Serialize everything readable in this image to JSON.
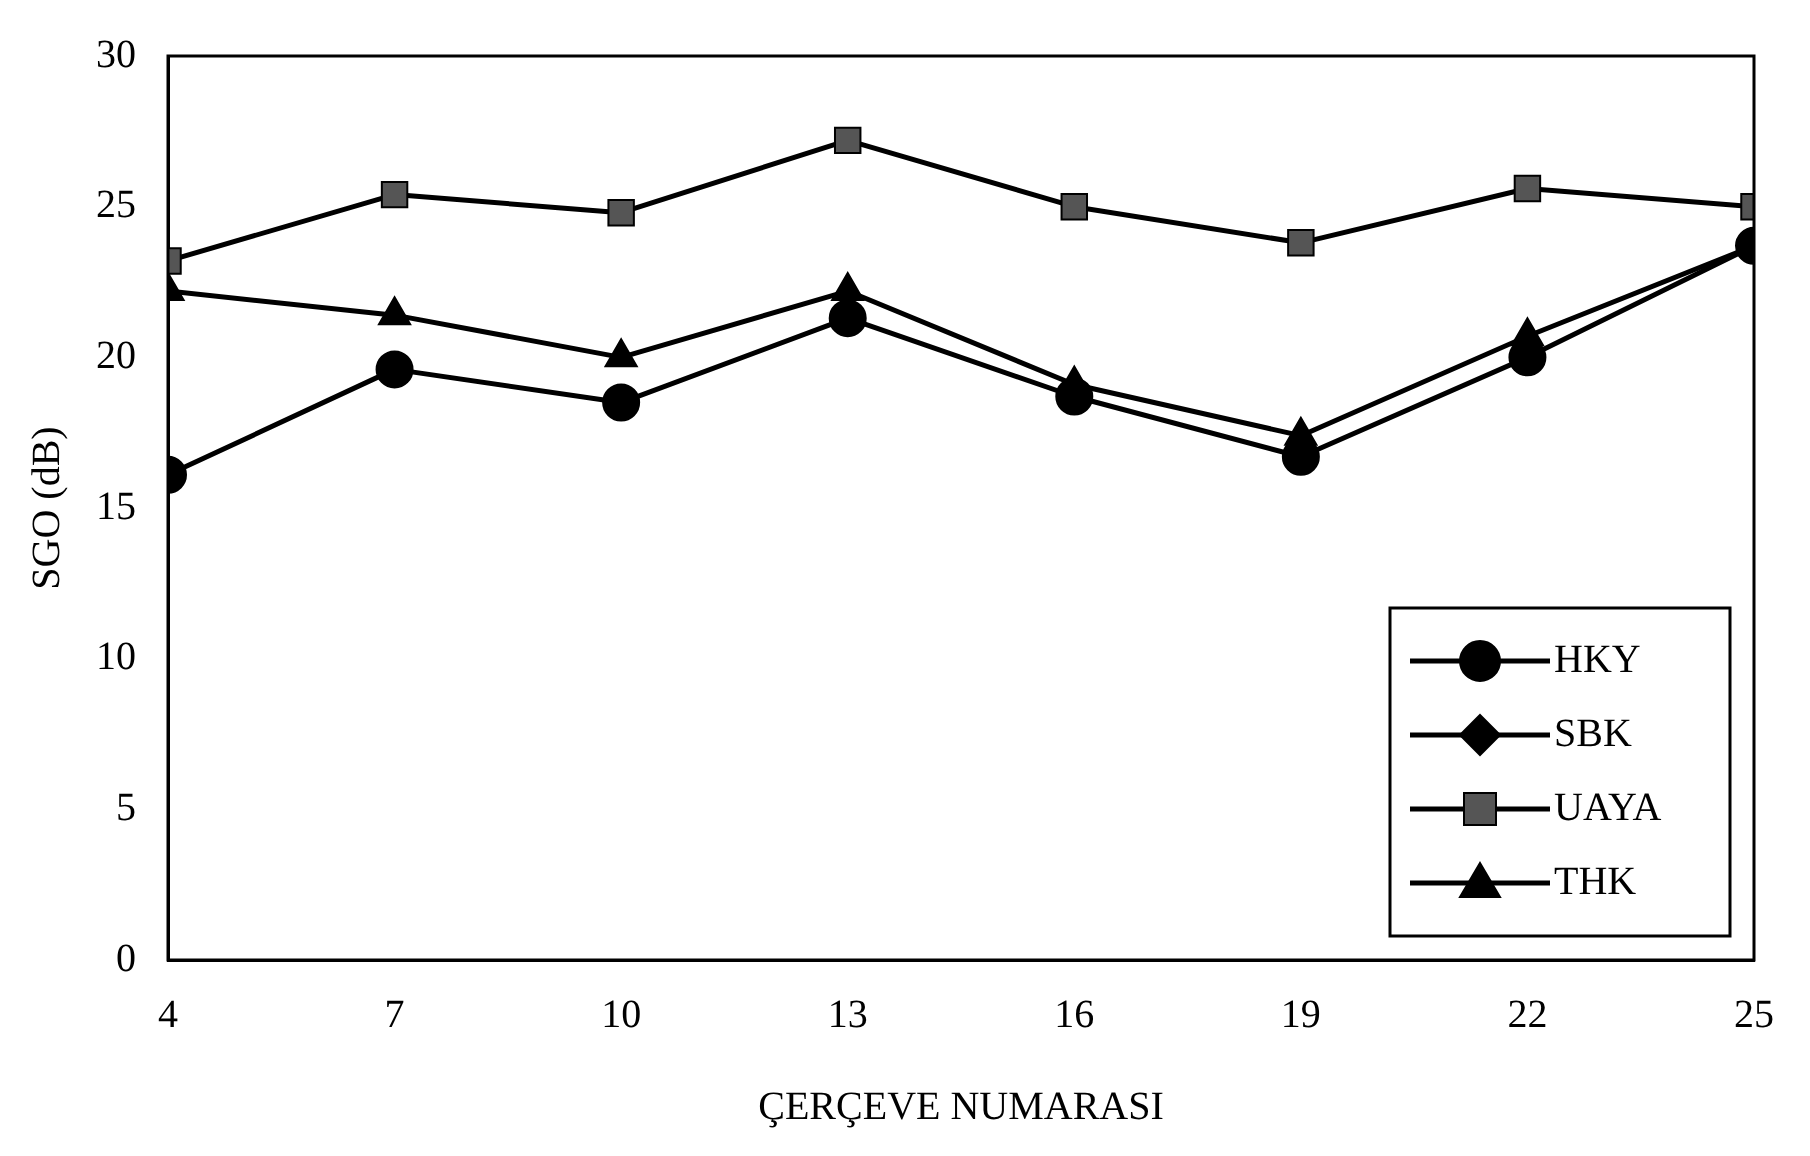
{
  "chart_data": {
    "type": "line",
    "xlabel": "ÇERÇEVE NUMARASI",
    "ylabel": "SGO (dB)",
    "x": [
      4,
      7,
      10,
      13,
      16,
      19,
      22,
      25
    ],
    "series": [
      {
        "name": "HKY",
        "color": "#000000",
        "marker": "circle",
        "values": [
          16.1,
          19.6,
          18.5,
          21.3,
          18.7,
          16.7,
          20.0,
          23.7
        ]
      },
      {
        "name": "SBK",
        "color": "#000000",
        "marker": "diamond",
        "values": [
          null,
          null,
          null,
          null,
          null,
          null,
          null,
          null
        ]
      },
      {
        "name": "UAYA",
        "color": "#555555",
        "marker": "square",
        "values": [
          23.2,
          25.4,
          24.8,
          27.2,
          25.0,
          23.8,
          25.6,
          25.0
        ]
      },
      {
        "name": "THK",
        "color": "#000000",
        "marker": "triangle",
        "values": [
          22.2,
          21.4,
          20.0,
          22.2,
          19.1,
          17.4,
          20.7,
          23.7
        ]
      }
    ],
    "xlim": [
      4,
      25
    ],
    "xticks": [
      4,
      7,
      10,
      13,
      16,
      19,
      22,
      25
    ],
    "ylim": [
      0,
      30
    ],
    "yticks": [
      0,
      5,
      10,
      15,
      20,
      25,
      30
    ],
    "grid": false,
    "legend": "bottom right"
  }
}
